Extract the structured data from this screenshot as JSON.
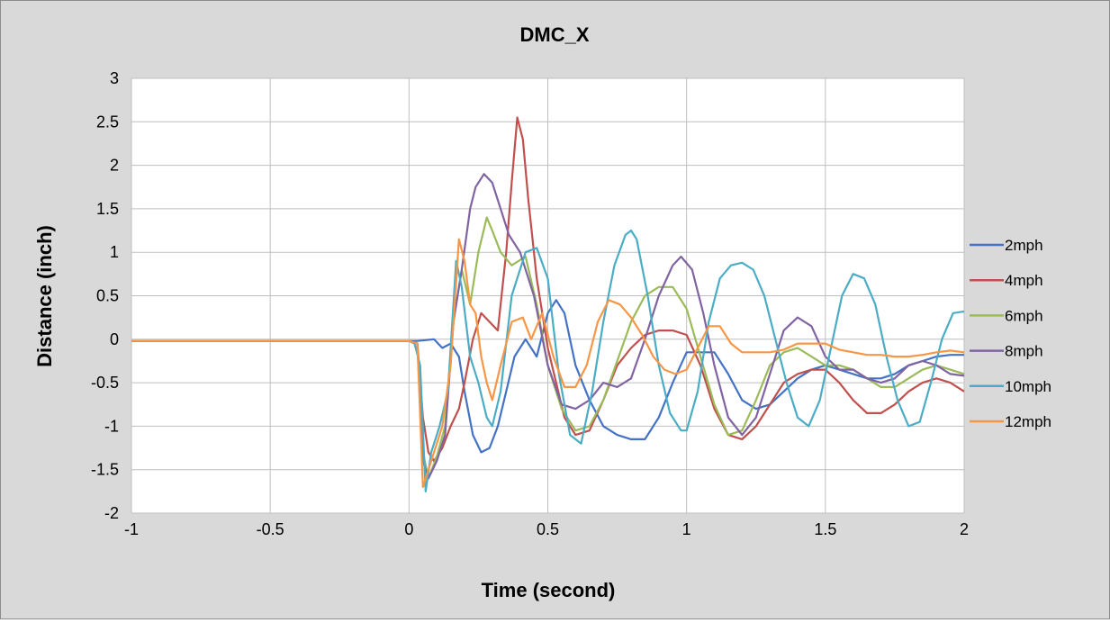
{
  "chart_data": {
    "type": "line",
    "title": "DMC_X",
    "xlabel": "Time (second)",
    "ylabel": "Distance (inch)",
    "xlim": [
      -1,
      2
    ],
    "ylim": [
      -2,
      3
    ],
    "xticks": [
      -1,
      -0.5,
      0,
      0.5,
      1,
      1.5,
      2
    ],
    "xtick_labels": [
      "-1",
      "-0.5",
      "0",
      "0.5",
      "1",
      "1.5",
      "2"
    ],
    "yticks": [
      -2,
      -1.5,
      -1,
      -0.5,
      0,
      0.5,
      1,
      1.5,
      2,
      2.5,
      3
    ],
    "ytick_labels": [
      "-2",
      "-1.5",
      "-1",
      "-0.5",
      "0",
      "0.5",
      "1",
      "1.5",
      "2",
      "2.5",
      "3"
    ],
    "grid": true,
    "legend_position": "right",
    "series": [
      {
        "name": "2mph",
        "color": "#4472c4",
        "x": [
          -1,
          0,
          0.03,
          0.06,
          0.09,
          0.12,
          0.15,
          0.18,
          0.2,
          0.23,
          0.26,
          0.29,
          0.32,
          0.35,
          0.38,
          0.42,
          0.46,
          0.5,
          0.53,
          0.56,
          0.6,
          0.65,
          0.7,
          0.75,
          0.8,
          0.85,
          0.9,
          0.95,
          1.0,
          1.05,
          1.1,
          1.15,
          1.2,
          1.25,
          1.3,
          1.35,
          1.4,
          1.45,
          1.5,
          1.55,
          1.6,
          1.65,
          1.7,
          1.75,
          1.8,
          1.85,
          1.9,
          1.95,
          2.0
        ],
        "y": [
          -0.02,
          -0.02,
          -0.02,
          -0.01,
          0.0,
          -0.1,
          -0.05,
          -0.2,
          -0.6,
          -1.1,
          -1.3,
          -1.25,
          -1.0,
          -0.6,
          -0.2,
          0.0,
          -0.2,
          0.3,
          0.45,
          0.3,
          -0.3,
          -0.7,
          -1.0,
          -1.1,
          -1.15,
          -1.15,
          -0.9,
          -0.5,
          -0.15,
          -0.15,
          -0.15,
          -0.4,
          -0.7,
          -0.8,
          -0.75,
          -0.6,
          -0.45,
          -0.35,
          -0.3,
          -0.35,
          -0.4,
          -0.45,
          -0.45,
          -0.4,
          -0.3,
          -0.25,
          -0.2,
          -0.18,
          -0.18
        ]
      },
      {
        "name": "4mph",
        "color": "#c0504d",
        "x": [
          -1,
          0,
          0.03,
          0.05,
          0.07,
          0.09,
          0.12,
          0.15,
          0.18,
          0.2,
          0.23,
          0.26,
          0.29,
          0.32,
          0.35,
          0.37,
          0.39,
          0.41,
          0.43,
          0.46,
          0.5,
          0.53,
          0.56,
          0.6,
          0.65,
          0.7,
          0.75,
          0.8,
          0.85,
          0.9,
          0.95,
          1.0,
          1.05,
          1.1,
          1.15,
          1.2,
          1.25,
          1.3,
          1.35,
          1.4,
          1.45,
          1.5,
          1.55,
          1.6,
          1.65,
          1.7,
          1.75,
          1.8,
          1.85,
          1.9,
          1.95,
          2.0
        ],
        "y": [
          -0.02,
          -0.02,
          -0.05,
          -0.9,
          -1.3,
          -1.4,
          -1.25,
          -1.0,
          -0.8,
          -0.5,
          0.0,
          0.3,
          0.2,
          0.1,
          1.0,
          1.8,
          2.55,
          2.3,
          1.6,
          0.7,
          -0.1,
          -0.5,
          -0.9,
          -1.1,
          -1.05,
          -0.7,
          -0.3,
          -0.1,
          0.05,
          0.1,
          0.1,
          0.05,
          -0.3,
          -0.8,
          -1.1,
          -1.15,
          -1.0,
          -0.75,
          -0.5,
          -0.4,
          -0.35,
          -0.35,
          -0.5,
          -0.7,
          -0.85,
          -0.85,
          -0.75,
          -0.6,
          -0.5,
          -0.45,
          -0.5,
          -0.6
        ]
      },
      {
        "name": "6mph",
        "color": "#9bbb59",
        "x": [
          -1,
          0,
          0.03,
          0.05,
          0.07,
          0.1,
          0.13,
          0.16,
          0.19,
          0.22,
          0.25,
          0.28,
          0.3,
          0.33,
          0.37,
          0.42,
          0.46,
          0.5,
          0.55,
          0.6,
          0.65,
          0.7,
          0.75,
          0.8,
          0.85,
          0.9,
          0.95,
          1.0,
          1.05,
          1.1,
          1.15,
          1.2,
          1.25,
          1.3,
          1.35,
          1.4,
          1.45,
          1.5,
          1.55,
          1.6,
          1.65,
          1.7,
          1.75,
          1.8,
          1.85,
          1.9,
          1.95,
          2.0
        ],
        "y": [
          -0.02,
          -0.02,
          -0.05,
          -1.3,
          -1.6,
          -1.35,
          -1.0,
          0.2,
          0.8,
          0.4,
          1.0,
          1.4,
          1.25,
          1.0,
          0.85,
          0.95,
          0.4,
          -0.3,
          -0.8,
          -1.05,
          -1.0,
          -0.7,
          -0.25,
          0.2,
          0.5,
          0.6,
          0.6,
          0.35,
          -0.2,
          -0.75,
          -1.1,
          -1.05,
          -0.7,
          -0.3,
          -0.15,
          -0.1,
          -0.2,
          -0.3,
          -0.3,
          -0.35,
          -0.45,
          -0.55,
          -0.55,
          -0.45,
          -0.35,
          -0.3,
          -0.35,
          -0.4
        ]
      },
      {
        "name": "8mph",
        "color": "#8064a2",
        "x": [
          -1,
          0,
          0.03,
          0.05,
          0.07,
          0.1,
          0.13,
          0.16,
          0.19,
          0.22,
          0.24,
          0.27,
          0.3,
          0.33,
          0.36,
          0.4,
          0.45,
          0.5,
          0.55,
          0.6,
          0.65,
          0.7,
          0.75,
          0.8,
          0.85,
          0.9,
          0.95,
          0.98,
          1.02,
          1.06,
          1.1,
          1.15,
          1.2,
          1.25,
          1.3,
          1.35,
          1.4,
          1.45,
          1.5,
          1.55,
          1.6,
          1.65,
          1.7,
          1.75,
          1.8,
          1.85,
          1.9,
          1.95,
          2.0
        ],
        "y": [
          -0.02,
          -0.02,
          -0.05,
          -1.4,
          -1.6,
          -1.4,
          -1.1,
          0.2,
          0.8,
          1.5,
          1.75,
          1.9,
          1.8,
          1.5,
          1.2,
          1.0,
          0.5,
          -0.3,
          -0.75,
          -0.8,
          -0.7,
          -0.5,
          -0.55,
          -0.45,
          0.0,
          0.5,
          0.85,
          0.95,
          0.8,
          0.3,
          -0.3,
          -0.9,
          -1.1,
          -0.9,
          -0.4,
          0.1,
          0.25,
          0.15,
          -0.2,
          -0.35,
          -0.35,
          -0.45,
          -0.5,
          -0.45,
          -0.3,
          -0.25,
          -0.3,
          -0.4,
          -0.42
        ]
      },
      {
        "name": "10mph",
        "color": "#4bacc6",
        "x": [
          -1,
          0,
          0.02,
          0.04,
          0.06,
          0.08,
          0.11,
          0.14,
          0.17,
          0.19,
          0.22,
          0.25,
          0.28,
          0.3,
          0.33,
          0.37,
          0.42,
          0.46,
          0.5,
          0.54,
          0.58,
          0.62,
          0.66,
          0.7,
          0.74,
          0.78,
          0.8,
          0.82,
          0.86,
          0.9,
          0.94,
          0.98,
          1.0,
          1.04,
          1.08,
          1.12,
          1.16,
          1.2,
          1.24,
          1.28,
          1.32,
          1.36,
          1.4,
          1.44,
          1.48,
          1.52,
          1.56,
          1.6,
          1.64,
          1.68,
          1.72,
          1.76,
          1.8,
          1.84,
          1.88,
          1.92,
          1.96,
          2.0
        ],
        "y": [
          -0.02,
          -0.02,
          -0.05,
          -0.3,
          -1.75,
          -1.3,
          -1.0,
          -0.6,
          0.9,
          0.6,
          -0.2,
          -0.5,
          -0.9,
          -1.0,
          -0.6,
          0.5,
          1.0,
          1.05,
          0.7,
          -0.4,
          -1.1,
          -1.2,
          -0.6,
          0.2,
          0.85,
          1.2,
          1.25,
          1.15,
          0.5,
          -0.3,
          -0.85,
          -1.05,
          -1.05,
          -0.6,
          0.2,
          0.7,
          0.85,
          0.88,
          0.8,
          0.5,
          0.0,
          -0.5,
          -0.9,
          -1.0,
          -0.7,
          -0.1,
          0.5,
          0.75,
          0.7,
          0.4,
          -0.2,
          -0.7,
          -1.0,
          -0.95,
          -0.5,
          0.0,
          0.3,
          0.32
        ]
      },
      {
        "name": "12mph",
        "color": "#f79646",
        "x": [
          -1,
          0,
          0.03,
          0.05,
          0.07,
          0.1,
          0.12,
          0.15,
          0.18,
          0.2,
          0.22,
          0.24,
          0.26,
          0.28,
          0.3,
          0.33,
          0.37,
          0.41,
          0.44,
          0.48,
          0.52,
          0.56,
          0.6,
          0.64,
          0.68,
          0.72,
          0.76,
          0.8,
          0.84,
          0.88,
          0.92,
          0.96,
          1.0,
          1.04,
          1.08,
          1.12,
          1.16,
          1.2,
          1.25,
          1.3,
          1.35,
          1.4,
          1.45,
          1.5,
          1.55,
          1.6,
          1.65,
          1.7,
          1.75,
          1.8,
          1.85,
          1.9,
          1.95,
          2.0
        ],
        "y": [
          -0.02,
          -0.02,
          -0.05,
          -1.7,
          -1.5,
          -1.2,
          -1.0,
          -0.3,
          1.15,
          0.9,
          0.4,
          0.3,
          -0.2,
          -0.5,
          -0.7,
          -0.3,
          0.2,
          0.25,
          0.0,
          0.3,
          -0.2,
          -0.55,
          -0.55,
          -0.3,
          0.2,
          0.45,
          0.4,
          0.25,
          0.05,
          -0.2,
          -0.35,
          -0.4,
          -0.35,
          -0.1,
          0.15,
          0.15,
          -0.05,
          -0.15,
          -0.15,
          -0.15,
          -0.12,
          -0.05,
          -0.05,
          -0.05,
          -0.12,
          -0.15,
          -0.18,
          -0.18,
          -0.2,
          -0.2,
          -0.18,
          -0.15,
          -0.13,
          -0.15
        ]
      }
    ]
  }
}
